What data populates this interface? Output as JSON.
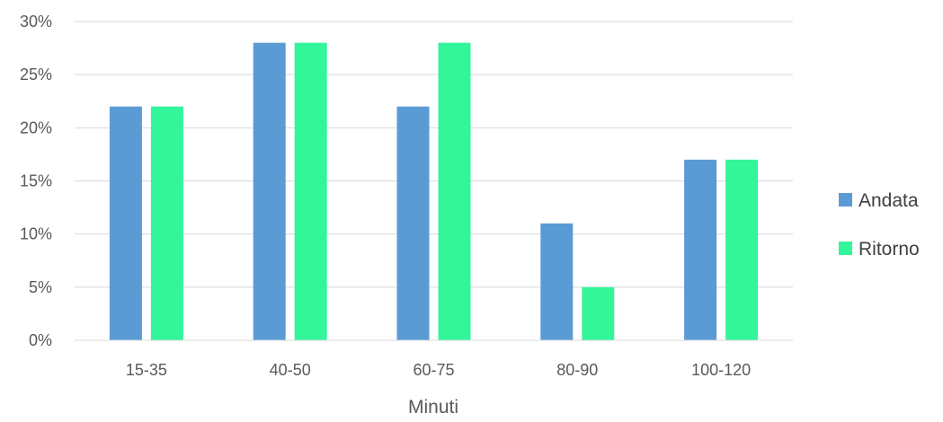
{
  "chart_data": {
    "type": "bar",
    "title": "",
    "xlabel": "Minuti",
    "ylabel": "",
    "categories": [
      "15-35",
      "40-50",
      "60-75",
      "80-90",
      "100-120"
    ],
    "series": [
      {
        "name": "Andata",
        "color": "#5b9bd5",
        "values": [
          22,
          28,
          22,
          11,
          17
        ]
      },
      {
        "name": "Ritorno",
        "color": "#33f59a",
        "values": [
          22,
          28,
          28,
          5,
          17
        ]
      }
    ],
    "ylim": [
      0,
      30
    ],
    "yticks": [
      0,
      5,
      10,
      15,
      20,
      25,
      30
    ],
    "ytick_labels": [
      "0%",
      "5%",
      "10%",
      "15%",
      "20%",
      "25%",
      "30%"
    ],
    "grid": true,
    "legend": "right"
  }
}
